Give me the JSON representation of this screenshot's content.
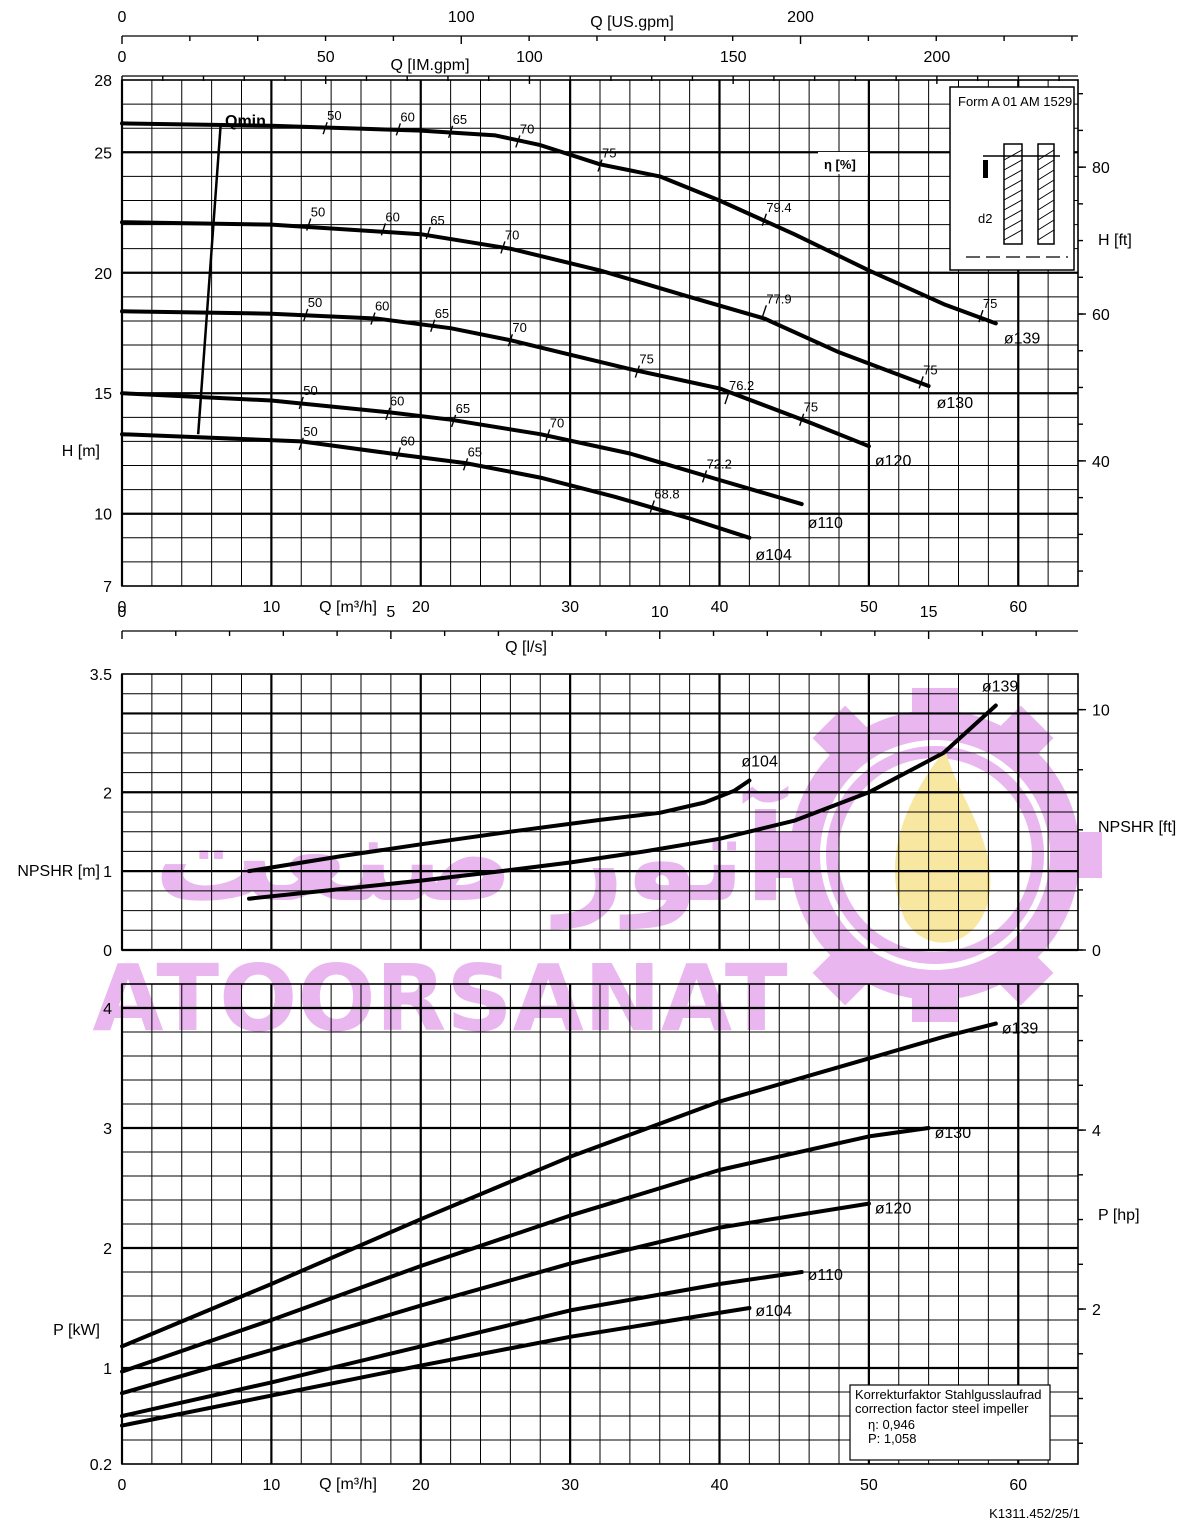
{
  "figure_id": "K1311.452/25/1",
  "colors": {
    "curve": "#000000",
    "grid": "#000000",
    "watermark": "#e9b6ef",
    "flame": "#f8e7a0"
  },
  "watermark": {
    "latin": "ATOORSANAT",
    "persian": "آتور صنعت"
  },
  "top_axes": {
    "us_gpm": {
      "label": "Q [US.gpm]",
      "ticks": [
        "0",
        "100",
        "200"
      ]
    },
    "im_gpm": {
      "label": "Q [IM.gpm]",
      "ticks": [
        "0",
        "50",
        "100",
        "150",
        "200"
      ]
    }
  },
  "ls_axis": {
    "label": "Q [l/s]",
    "ticks": [
      "0",
      "5",
      "10",
      "15"
    ]
  },
  "qmin_label": "Qmin",
  "eta_label": "η [%]",
  "inset": {
    "form_text": "Form A 01 AM 1529",
    "d2_label": "d2"
  },
  "correction_box": {
    "line1": "Korrekturfaktor Stahlgusslaufrad",
    "line2": "correction factor steel impeller",
    "eta": "η: 0,946",
    "p": "P: 1,058"
  },
  "chart_data": [
    {
      "type": "line",
      "name": "head",
      "xlabel": "Q [m³/h]",
      "ylabel": "H [m]",
      "y2label": "H [ft]",
      "xlim": [
        0,
        64
      ],
      "ylim": [
        7,
        28
      ],
      "x_ticks": [
        "0",
        "10",
        "20",
        "30",
        "40",
        "50",
        "60"
      ],
      "y_ticks": [
        "7",
        "10",
        "15",
        "20",
        "25",
        "28"
      ],
      "y2_ticks": [
        "40",
        "60",
        "80"
      ],
      "grid": true,
      "series": [
        {
          "name": "ø139",
          "x": [
            0,
            10,
            20,
            25,
            28,
            32,
            36,
            40,
            45,
            50,
            55,
            58.5
          ],
          "y": [
            26.2,
            26.1,
            25.9,
            25.7,
            25.3,
            24.5,
            24.0,
            23.0,
            21.6,
            20.1,
            18.7,
            17.9
          ]
        },
        {
          "name": "ø130",
          "x": [
            0,
            10,
            20,
            26,
            32,
            38,
            43,
            48,
            54
          ],
          "y": [
            22.1,
            22.0,
            21.6,
            21.0,
            20.1,
            19.0,
            18.1,
            16.7,
            15.3
          ]
        },
        {
          "name": "ø120",
          "x": [
            0,
            10,
            17,
            22,
            26,
            30,
            34,
            40,
            46,
            50
          ],
          "y": [
            18.4,
            18.3,
            18.1,
            17.7,
            17.2,
            16.6,
            16.0,
            15.2,
            13.8,
            12.8
          ]
        },
        {
          "name": "ø110",
          "x": [
            0,
            10,
            18,
            22,
            28,
            34,
            40,
            45.5
          ],
          "y": [
            15.0,
            14.7,
            14.2,
            13.9,
            13.3,
            12.5,
            11.4,
            10.4
          ]
        },
        {
          "name": "ø104",
          "x": [
            0,
            12,
            18,
            23,
            28,
            33,
            38,
            42
          ],
          "y": [
            13.3,
            13.0,
            12.5,
            12.1,
            11.5,
            10.7,
            9.8,
            9.0
          ]
        }
      ],
      "efficiency_marks": [
        {
          "label": "50",
          "x": 13.6,
          "y": 26.0,
          "curve": "ø139"
        },
        {
          "label": "60",
          "x": 18.5,
          "y": 25.95,
          "curve": "ø139"
        },
        {
          "label": "65",
          "x": 22,
          "y": 25.85,
          "curve": "ø139"
        },
        {
          "label": "70",
          "x": 26.5,
          "y": 25.45,
          "curve": "ø139"
        },
        {
          "label": "75",
          "x": 32,
          "y": 24.45,
          "curve": "ø139"
        },
        {
          "label": "79.4",
          "x": 43,
          "y": 22.2,
          "curve": "ø139"
        },
        {
          "label": "75",
          "x": 57.5,
          "y": 18.2,
          "curve": "ø139"
        },
        {
          "label": "50",
          "x": 12.5,
          "y": 22.0,
          "curve": "ø130"
        },
        {
          "label": "60",
          "x": 17.5,
          "y": 21.8,
          "curve": "ø130"
        },
        {
          "label": "65",
          "x": 20.5,
          "y": 21.65,
          "curve": "ø130"
        },
        {
          "label": "70",
          "x": 25.5,
          "y": 21.05,
          "curve": "ø130"
        },
        {
          "label": "77.9",
          "x": 43,
          "y": 18.4,
          "curve": "ø130"
        },
        {
          "label": "75",
          "x": 53.5,
          "y": 15.45,
          "curve": "ø130"
        },
        {
          "label": "50",
          "x": 12.3,
          "y": 18.25,
          "curve": "ø120"
        },
        {
          "label": "60",
          "x": 16.8,
          "y": 18.1,
          "curve": "ø120"
        },
        {
          "label": "65",
          "x": 20.8,
          "y": 17.8,
          "curve": "ø120"
        },
        {
          "label": "70",
          "x": 26,
          "y": 17.2,
          "curve": "ø120"
        },
        {
          "label": "75",
          "x": 34.5,
          "y": 15.9,
          "curve": "ø120"
        },
        {
          "label": "76.2",
          "x": 40.5,
          "y": 14.8,
          "curve": "ø120"
        },
        {
          "label": "75",
          "x": 45.5,
          "y": 13.9,
          "curve": "ø120"
        },
        {
          "label": "50",
          "x": 12,
          "y": 14.6,
          "curve": "ø110"
        },
        {
          "label": "60",
          "x": 17.8,
          "y": 14.15,
          "curve": "ø110"
        },
        {
          "label": "65",
          "x": 22.2,
          "y": 13.85,
          "curve": "ø110"
        },
        {
          "label": "70",
          "x": 28.5,
          "y": 13.25,
          "curve": "ø110"
        },
        {
          "label": "72.2",
          "x": 39,
          "y": 11.55,
          "curve": "ø110"
        },
        {
          "label": "50",
          "x": 12,
          "y": 12.9,
          "curve": "ø104"
        },
        {
          "label": "60",
          "x": 18.5,
          "y": 12.5,
          "curve": "ø104"
        },
        {
          "label": "65",
          "x": 23,
          "y": 12.05,
          "curve": "ø104"
        },
        {
          "label": "68.8",
          "x": 35.5,
          "y": 10.3,
          "curve": "ø104"
        }
      ],
      "qmin_line": {
        "x": [
          6.6,
          5.1
        ],
        "y": [
          26.1,
          13.3
        ]
      }
    },
    {
      "type": "line",
      "name": "npsh",
      "xlabel": "",
      "ylabel": "NPSHR [m]",
      "y2label": "NPSHR [ft]",
      "xlim": [
        0,
        64
      ],
      "ylim": [
        0,
        3.5
      ],
      "y_ticks": [
        "0",
        "1",
        "2",
        "3.5"
      ],
      "y2_ticks": [
        "0",
        "10"
      ],
      "grid": true,
      "series": [
        {
          "name": "ø104",
          "x": [
            8.5,
            15,
            20,
            26,
            32,
            36,
            39,
            41,
            42
          ],
          "y": [
            1.0,
            1.2,
            1.34,
            1.5,
            1.65,
            1.74,
            1.87,
            2.02,
            2.15
          ]
        },
        {
          "name": "ø139",
          "x": [
            8.5,
            15,
            20,
            25,
            30,
            35,
            40,
            45,
            50,
            55,
            58.5
          ],
          "y": [
            0.65,
            0.78,
            0.88,
            0.99,
            1.11,
            1.25,
            1.41,
            1.64,
            2.0,
            2.5,
            3.1
          ]
        }
      ]
    },
    {
      "type": "line",
      "name": "power",
      "xlabel": "Q [m³/h]",
      "ylabel": "P [kW]",
      "y2label": "P [hp]",
      "xlim": [
        0,
        64
      ],
      "ylim": [
        0.2,
        4.2
      ],
      "x_ticks": [
        "0",
        "10",
        "20",
        "30",
        "40",
        "50",
        "60"
      ],
      "y_ticks": [
        "0.2",
        "1",
        "2",
        "3",
        "4"
      ],
      "y2_ticks": [
        "2",
        "4"
      ],
      "grid": true,
      "series": [
        {
          "name": "ø139",
          "x": [
            0,
            10,
            20,
            30,
            40,
            50,
            55,
            58.5
          ],
          "y": [
            1.18,
            1.7,
            2.24,
            2.76,
            3.22,
            3.58,
            3.76,
            3.87
          ]
        },
        {
          "name": "ø130",
          "x": [
            0,
            10,
            20,
            30,
            40,
            50,
            54
          ],
          "y": [
            0.97,
            1.4,
            1.85,
            2.27,
            2.65,
            2.93,
            3.0
          ]
        },
        {
          "name": "ø120",
          "x": [
            0,
            10,
            20,
            30,
            40,
            50
          ],
          "y": [
            0.79,
            1.15,
            1.52,
            1.87,
            2.17,
            2.37
          ]
        },
        {
          "name": "ø110",
          "x": [
            0,
            10,
            20,
            30,
            40,
            45.5
          ],
          "y": [
            0.6,
            0.88,
            1.18,
            1.48,
            1.7,
            1.8
          ]
        },
        {
          "name": "ø104",
          "x": [
            0,
            10,
            20,
            30,
            36,
            42
          ],
          "y": [
            0.52,
            0.77,
            1.02,
            1.26,
            1.38,
            1.5
          ]
        }
      ]
    }
  ]
}
